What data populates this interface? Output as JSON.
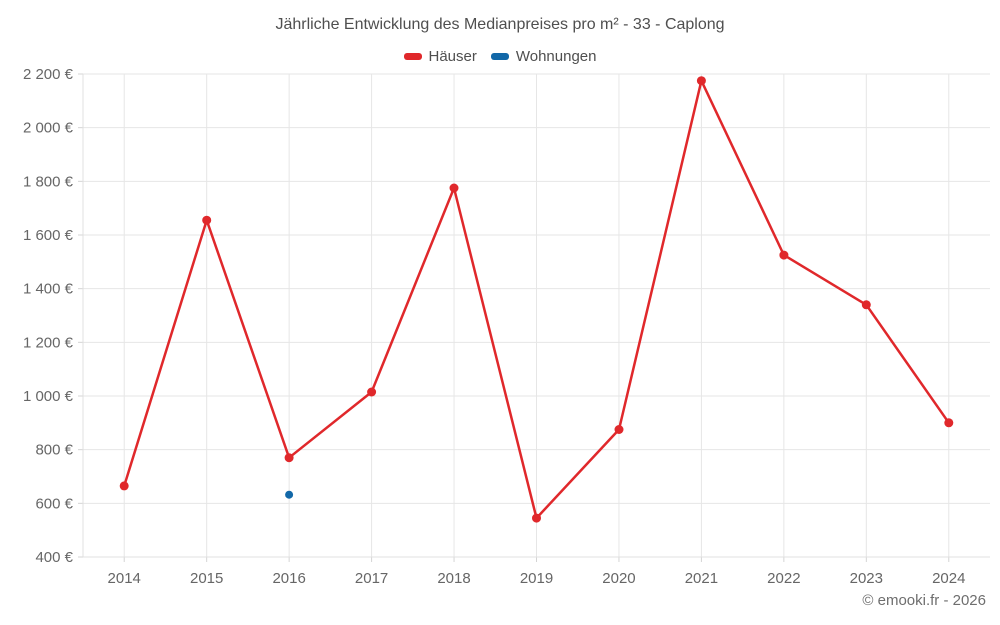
{
  "title": "Jährliche Entwicklung des Medianpreises pro m² - 33 - Caplong",
  "legend": [
    {
      "label": "Häuser",
      "color": "#e0282b"
    },
    {
      "label": "Wohnungen",
      "color": "#1268a8"
    }
  ],
  "footer": "© emooki.fr - 2026",
  "chart_data": {
    "type": "line",
    "x": [
      2014,
      2015,
      2016,
      2017,
      2018,
      2019,
      2020,
      2021,
      2022,
      2023,
      2024
    ],
    "series": [
      {
        "name": "Häuser",
        "color": "#e0282b",
        "marker_radius": 4.5,
        "values": [
          665,
          1655,
          770,
          1015,
          1775,
          545,
          875,
          2175,
          1525,
          1340,
          900
        ]
      },
      {
        "name": "Wohnungen",
        "color": "#1268a8",
        "marker_radius": 4,
        "values": [
          null,
          null,
          632,
          null,
          null,
          null,
          null,
          null,
          null,
          null,
          null
        ]
      }
    ],
    "ylim": [
      400,
      2200
    ],
    "y_tick_step": 200,
    "y_tick_labels": [
      "400 €",
      "600 €",
      "800 €",
      "1 000 €",
      "1 200 €",
      "1 400 €",
      "1 600 €",
      "1 800 €",
      "2 000 €",
      "2 200 €"
    ],
    "currency": "€",
    "grid": true,
    "legend_position": "top",
    "grid_color": "#e6e6e6",
    "axis_color": "#e0e0e0",
    "tick_color": "#d4d4d4",
    "label_color": "#666666"
  }
}
